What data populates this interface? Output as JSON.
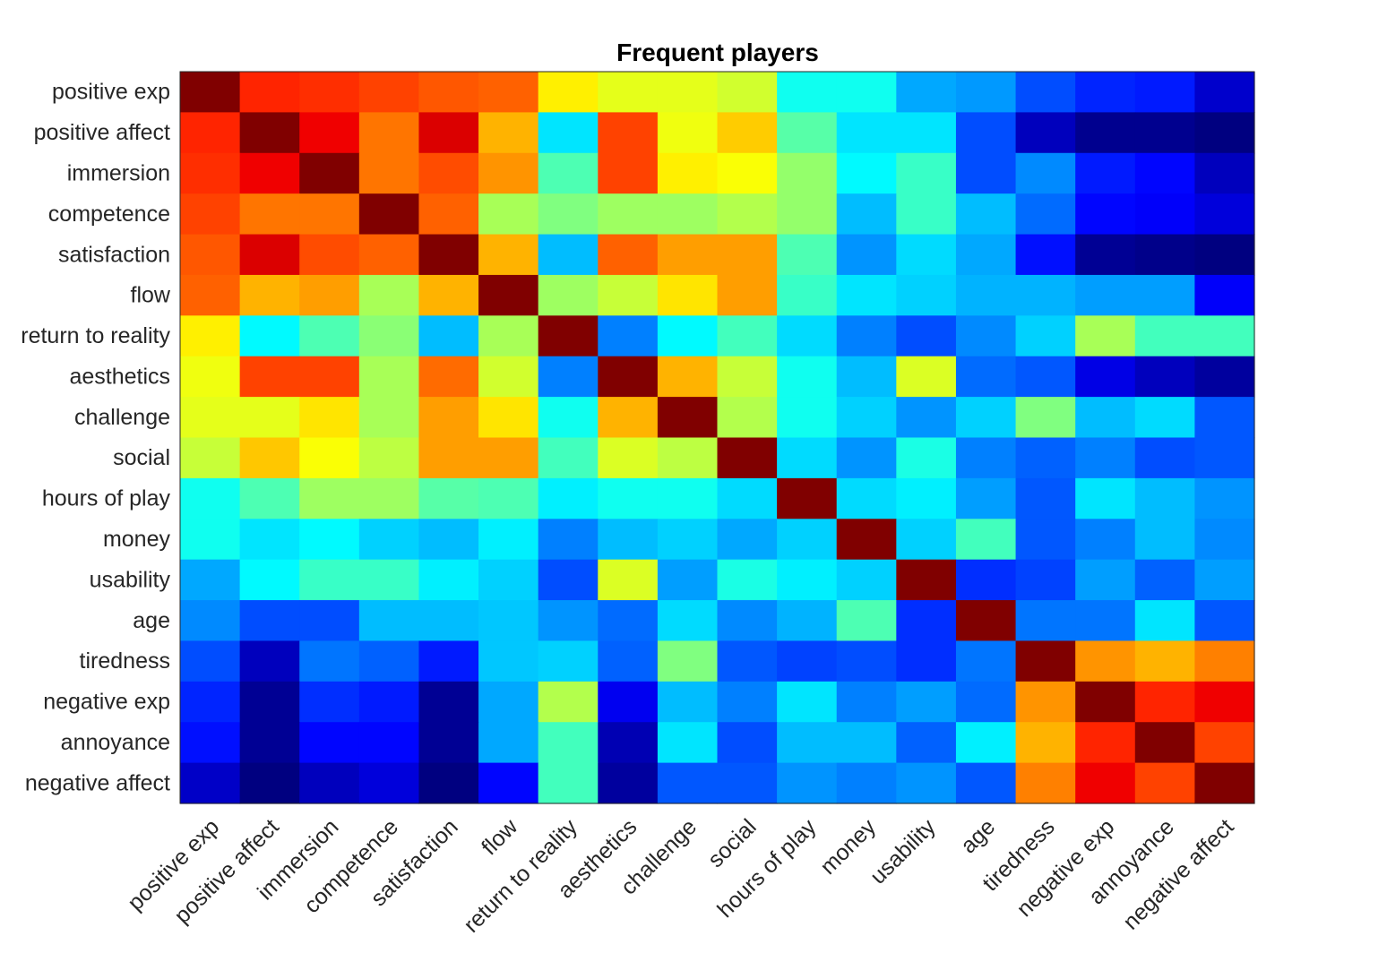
{
  "chart_data": {
    "type": "heatmap",
    "title": "Frequent players",
    "colormap": "jet",
    "clim": [
      -1,
      1
    ],
    "labels": [
      "positive exp",
      "positive affect",
      "immersion",
      "competence",
      "satisfaction",
      "flow",
      "return to reality",
      "aesthetics",
      "challenge",
      "social",
      "hours of play",
      "money",
      "usability",
      "age",
      "tiredness",
      "negative exp",
      "annoyance",
      "negative affect"
    ],
    "values": [
      [
        1.0,
        0.68,
        0.66,
        0.62,
        0.58,
        0.56,
        0.28,
        0.2,
        0.2,
        0.16,
        -0.22,
        -0.22,
        -0.42,
        -0.45,
        -0.6,
        -0.68,
        -0.7,
        -0.85
      ],
      [
        0.68,
        1.0,
        0.78,
        0.52,
        0.82,
        0.4,
        -0.3,
        0.62,
        0.22,
        0.35,
        -0.08,
        -0.3,
        -0.3,
        -0.6,
        -0.88,
        -0.97,
        -0.97,
        -1.0
      ],
      [
        0.66,
        0.78,
        1.0,
        0.52,
        0.6,
        0.46,
        -0.1,
        0.62,
        0.28,
        0.24,
        0.04,
        -0.26,
        -0.14,
        -0.6,
        -0.48,
        -0.7,
        -0.74,
        -0.88
      ],
      [
        0.62,
        0.52,
        0.52,
        1.0,
        0.56,
        0.08,
        0.0,
        0.06,
        0.06,
        0.1,
        0.04,
        -0.38,
        -0.14,
        -0.38,
        -0.54,
        -0.74,
        -0.76,
        -0.82
      ],
      [
        0.58,
        0.82,
        0.6,
        0.56,
        1.0,
        0.4,
        -0.38,
        0.56,
        0.44,
        0.44,
        -0.1,
        -0.46,
        -0.32,
        -0.42,
        -0.72,
        -0.96,
        -0.98,
        -1.0
      ],
      [
        0.56,
        0.4,
        0.44,
        0.08,
        0.4,
        1.0,
        0.06,
        0.14,
        0.3,
        0.44,
        -0.14,
        -0.3,
        -0.34,
        -0.4,
        -0.4,
        -0.44,
        -0.44,
        -0.76
      ],
      [
        0.28,
        -0.26,
        -0.1,
        0.02,
        -0.38,
        0.08,
        1.0,
        -0.5,
        -0.26,
        -0.12,
        -0.32,
        -0.5,
        -0.6,
        -0.48,
        -0.34,
        0.08,
        -0.12,
        -0.12
      ],
      [
        0.22,
        0.62,
        0.62,
        0.08,
        0.54,
        0.16,
        -0.5,
        1.0,
        0.4,
        0.14,
        -0.22,
        -0.38,
        0.18,
        -0.54,
        -0.58,
        -0.8,
        -0.88,
        -0.94
      ],
      [
        0.2,
        0.2,
        0.3,
        0.08,
        0.44,
        0.3,
        -0.22,
        0.4,
        1.0,
        0.1,
        -0.22,
        -0.34,
        -0.46,
        -0.34,
        0.0,
        -0.38,
        -0.32,
        -0.58
      ],
      [
        0.14,
        0.36,
        0.24,
        0.12,
        0.44,
        0.44,
        -0.12,
        0.18,
        0.12,
        1.0,
        -0.32,
        -0.46,
        -0.2,
        -0.5,
        -0.56,
        -0.5,
        -0.6,
        -0.58
      ],
      [
        -0.22,
        -0.1,
        0.06,
        0.06,
        -0.08,
        -0.1,
        -0.28,
        -0.22,
        -0.22,
        -0.32,
        1.0,
        -0.32,
        -0.28,
        -0.44,
        -0.58,
        -0.3,
        -0.38,
        -0.46
      ],
      [
        -0.22,
        -0.3,
        -0.26,
        -0.34,
        -0.38,
        -0.28,
        -0.5,
        -0.38,
        -0.34,
        -0.42,
        -0.34,
        1.0,
        -0.34,
        -0.12,
        -0.58,
        -0.5,
        -0.38,
        -0.48
      ],
      [
        -0.42,
        -0.26,
        -0.14,
        -0.14,
        -0.28,
        -0.34,
        -0.6,
        0.18,
        -0.44,
        -0.2,
        -0.28,
        -0.34,
        1.0,
        -0.66,
        -0.62,
        -0.44,
        -0.56,
        -0.44
      ],
      [
        -0.48,
        -0.6,
        -0.6,
        -0.38,
        -0.38,
        -0.36,
        -0.46,
        -0.54,
        -0.32,
        -0.48,
        -0.4,
        -0.1,
        -0.66,
        1.0,
        -0.52,
        -0.52,
        -0.3,
        -0.58
      ],
      [
        -0.6,
        -0.88,
        -0.52,
        -0.56,
        -0.7,
        -0.36,
        -0.34,
        -0.56,
        0.0,
        -0.58,
        -0.62,
        -0.6,
        -0.66,
        -0.52,
        1.0,
        0.46,
        0.4,
        0.5
      ],
      [
        -0.68,
        -0.96,
        -0.66,
        -0.7,
        -0.96,
        -0.42,
        0.1,
        -0.78,
        -0.38,
        -0.5,
        -0.3,
        -0.5,
        -0.44,
        -0.54,
        0.46,
        1.0,
        0.68,
        0.78
      ],
      [
        -0.72,
        -0.96,
        -0.74,
        -0.74,
        -0.96,
        -0.42,
        -0.12,
        -0.9,
        -0.3,
        -0.6,
        -0.38,
        -0.38,
        -0.56,
        -0.28,
        0.4,
        0.68,
        1.0,
        0.62
      ],
      [
        -0.86,
        -1.0,
        -0.88,
        -0.82,
        -1.0,
        -0.74,
        -0.12,
        -0.94,
        -0.58,
        -0.58,
        -0.46,
        -0.5,
        -0.46,
        -0.58,
        0.5,
        0.78,
        0.62,
        1.0
      ]
    ]
  }
}
